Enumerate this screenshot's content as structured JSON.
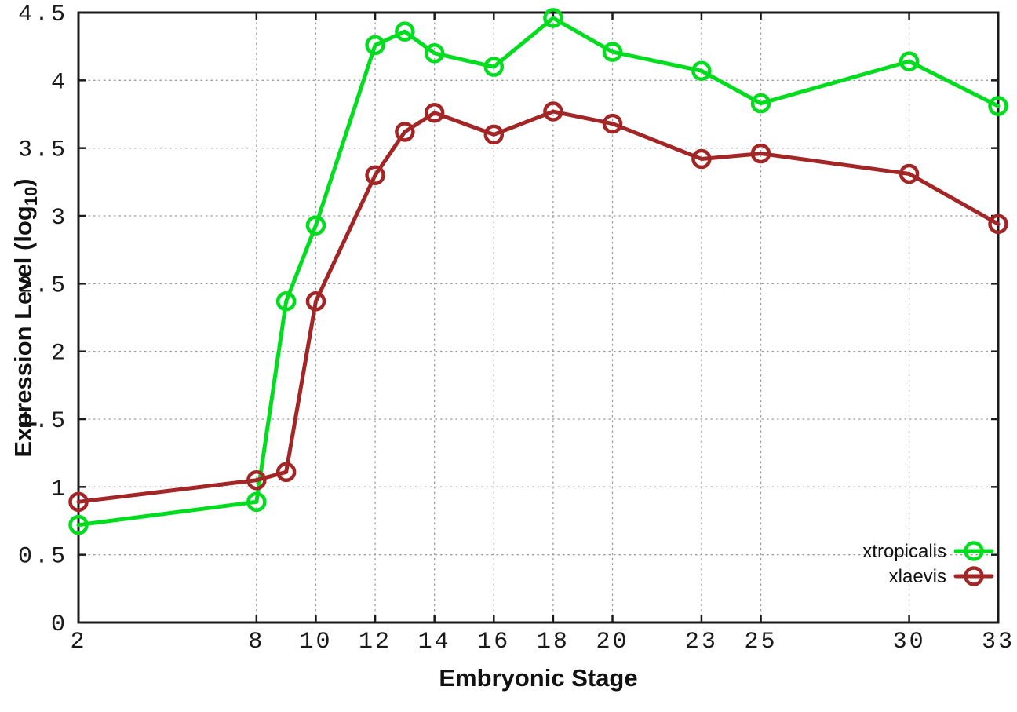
{
  "chart_data": {
    "type": "line",
    "title": "",
    "xlabel": "Embryonic Stage",
    "ylabel": {
      "main": "Expression Level (log",
      "subscript": "10",
      "close": ")"
    },
    "x": [
      2,
      8,
      9,
      10,
      12,
      13,
      14,
      16,
      18,
      20,
      23,
      25,
      30,
      33
    ],
    "series": [
      {
        "name": "xtropicalis",
        "color": "#00dc1e",
        "values": [
          0.72,
          0.89,
          2.37,
          2.93,
          4.26,
          4.36,
          4.2,
          4.1,
          4.46,
          4.21,
          4.07,
          3.83,
          4.14,
          3.81
        ]
      },
      {
        "name": "xlaevis",
        "color": "#a32626",
        "values": [
          0.89,
          1.05,
          1.11,
          2.37,
          3.3,
          3.62,
          3.76,
          3.6,
          3.77,
          3.68,
          3.42,
          3.46,
          3.31,
          2.94
        ]
      }
    ],
    "xticks": [
      2,
      8,
      10,
      12,
      14,
      16,
      18,
      20,
      23,
      25,
      30,
      33
    ],
    "yticks": [
      0,
      0.5,
      1,
      1.5,
      2,
      2.5,
      3,
      3.5,
      4,
      4.5
    ],
    "xlim": [
      2,
      33
    ],
    "ylim": [
      0,
      4.5
    ],
    "grid": true,
    "legend_position": "bottom-right",
    "marker": "open-circle",
    "background": "#ffffff",
    "axis_color": "#1a1a1a",
    "grid_color": "#9a9a9a"
  }
}
